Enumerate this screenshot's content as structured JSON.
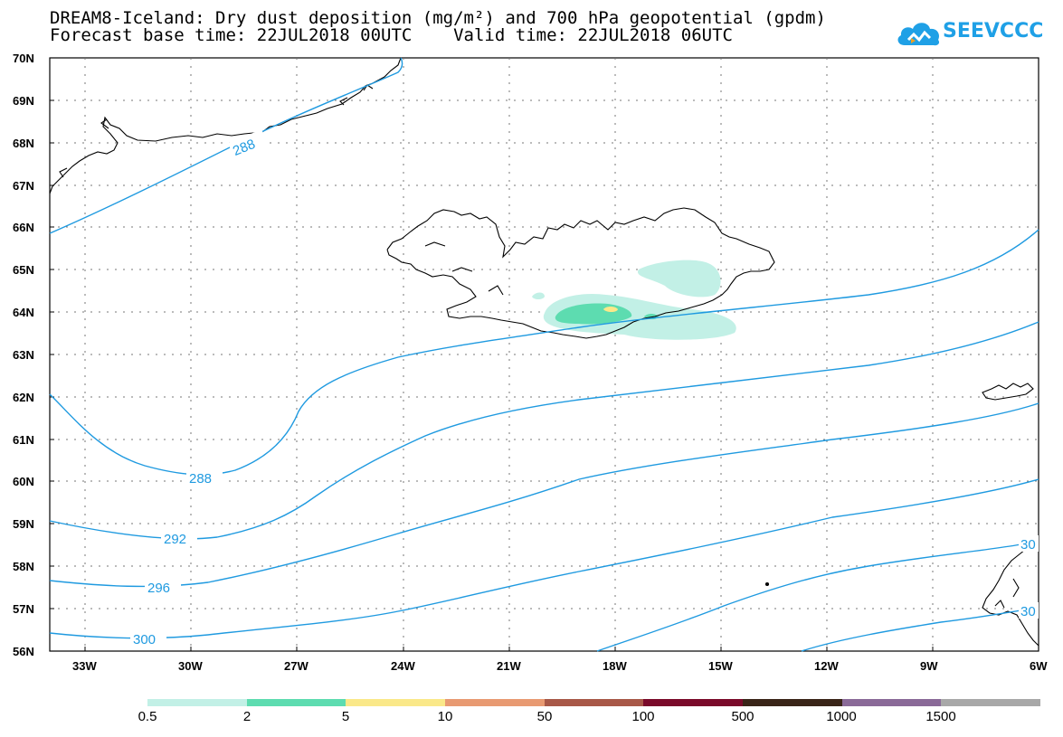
{
  "title_line1": "DREAM8-Iceland: Dry dust deposition (mg/m²) and 700 hPa geopotential (gpdm)",
  "title_line2": "Forecast base time: 22JUL2018 00UTC    Valid time: 22JUL2018 06UTC",
  "logo_text": "SEEVCCC",
  "lat_labels": [
    "70N",
    "69N",
    "68N",
    "67N",
    "66N",
    "65N",
    "64N",
    "63N",
    "62N",
    "61N",
    "60N",
    "59N",
    "58N",
    "57N",
    "56N"
  ],
  "lon_labels": [
    "33W",
    "30W",
    "27W",
    "24W",
    "21W",
    "18W",
    "15W",
    "12W",
    "9W",
    "6W"
  ],
  "contour_labels": [
    "288",
    "288",
    "292",
    "296",
    "300",
    "30",
    "30"
  ],
  "legend": {
    "colors": [
      "#c2f0e6",
      "#5ddcb0",
      "#fae889",
      "#e89a72",
      "#a85848",
      "#7a0a2a",
      "#3a2518",
      "#8a6a98",
      "#a8a8a8"
    ],
    "labels": [
      "0.5",
      "2",
      "5",
      "10",
      "50",
      "100",
      "500",
      "1000",
      "1500"
    ]
  }
}
